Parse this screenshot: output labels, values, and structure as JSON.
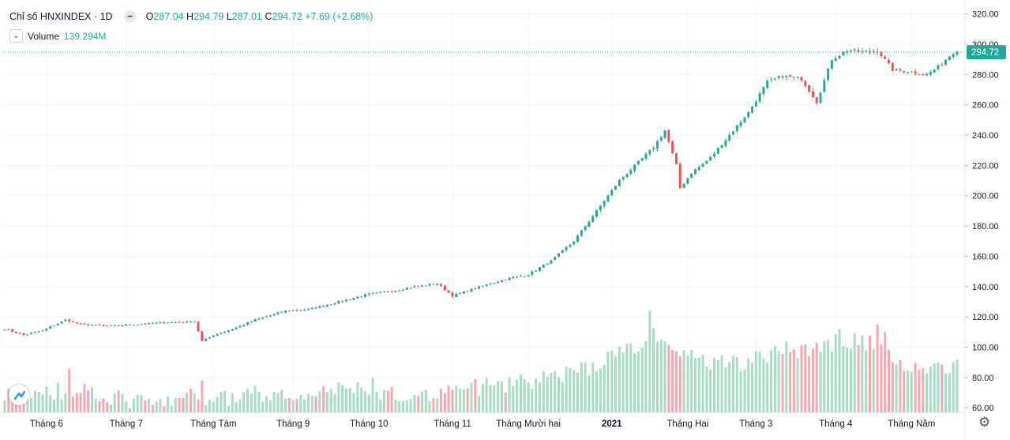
{
  "legend": {
    "symbol_label": "Chỉ số HNXINDEX · 1D",
    "open_label": "O",
    "open_value": "287.04",
    "high_label": "H",
    "high_value": "294.79",
    "low_label": "L",
    "low_value": "287.01",
    "close_label": "C",
    "close_value": "294.72",
    "change": "+7.69 (+2.68%)"
  },
  "volume_legend": {
    "label": "Volume",
    "value": "139.294M"
  },
  "colors": {
    "up": "#26a69a",
    "down": "#ef5350",
    "up_volume": "#a6dcc3",
    "down_volume": "#f6a7b1",
    "price_line": "#26a69a",
    "grid": "#f0f3fa"
  },
  "chart_data": {
    "type": "candlestick",
    "title": "Chỉ số HNXINDEX · 1D",
    "last_price": 294.72,
    "last_price_label": "294.72",
    "ylim": [
      57,
      325
    ],
    "y_ticks": [
      60,
      80,
      100,
      120,
      140,
      160,
      180,
      200,
      220,
      240,
      260,
      280,
      300,
      320
    ],
    "y_tick_labels": [
      "60.00",
      "80.00",
      "100.00",
      "120.00",
      "140.00",
      "160.00",
      "180.00",
      "200.00",
      "220.00",
      "240.00",
      "260.00",
      "280.00",
      "300.00",
      "320.00"
    ],
    "x_labels": [
      "Tháng 6",
      "Tháng 7",
      "Tháng Tám",
      "Tháng 9",
      "Tháng 10",
      "Tháng 11",
      "Tháng Mười hai",
      "2021",
      "Tháng Hai",
      "Tháng 3",
      "Tháng 4",
      "Tháng Năm"
    ],
    "x_label_bar_index": [
      11,
      32,
      55,
      76,
      96,
      118,
      138,
      160,
      180,
      198,
      219,
      239
    ],
    "bar_count": 252,
    "price_keyframes": [
      [
        0,
        112
      ],
      [
        5,
        108
      ],
      [
        10,
        111
      ],
      [
        16,
        118
      ],
      [
        20,
        115
      ],
      [
        28,
        114
      ],
      [
        40,
        116
      ],
      [
        50,
        117
      ],
      [
        52,
        104
      ],
      [
        55,
        108
      ],
      [
        60,
        112
      ],
      [
        66,
        118
      ],
      [
        74,
        124
      ],
      [
        80,
        125
      ],
      [
        88,
        130
      ],
      [
        96,
        135
      ],
      [
        102,
        137
      ],
      [
        108,
        140
      ],
      [
        114,
        142
      ],
      [
        118,
        134
      ],
      [
        124,
        139
      ],
      [
        132,
        145
      ],
      [
        138,
        148
      ],
      [
        144,
        157
      ],
      [
        150,
        170
      ],
      [
        156,
        190
      ],
      [
        162,
        210
      ],
      [
        167,
        222
      ],
      [
        171,
        232
      ],
      [
        174,
        243
      ],
      [
        177,
        220
      ],
      [
        178,
        205
      ],
      [
        181,
        215
      ],
      [
        186,
        225
      ],
      [
        191,
        240
      ],
      [
        196,
        255
      ],
      [
        201,
        275
      ],
      [
        205,
        279
      ],
      [
        210,
        277
      ],
      [
        214,
        262
      ],
      [
        218,
        290
      ],
      [
        222,
        296
      ],
      [
        226,
        295
      ],
      [
        230,
        296
      ],
      [
        234,
        283
      ],
      [
        238,
        282
      ],
      [
        243,
        280
      ],
      [
        246,
        285
      ],
      [
        250,
        294.72
      ]
    ],
    "volume_keyframes": [
      [
        0,
        68
      ],
      [
        10,
        70
      ],
      [
        20,
        73
      ],
      [
        30,
        66
      ],
      [
        40,
        62
      ],
      [
        50,
        68
      ],
      [
        56,
        66
      ],
      [
        70,
        70
      ],
      [
        90,
        73
      ],
      [
        110,
        69
      ],
      [
        130,
        75
      ],
      [
        145,
        80
      ],
      [
        155,
        88
      ],
      [
        165,
        98
      ],
      [
        170,
        110
      ],
      [
        176,
        100
      ],
      [
        185,
        88
      ],
      [
        195,
        90
      ],
      [
        205,
        98
      ],
      [
        215,
        100
      ],
      [
        220,
        105
      ],
      [
        230,
        102
      ],
      [
        236,
        90
      ],
      [
        244,
        84
      ],
      [
        251,
        86
      ]
    ],
    "volume_spikes": [
      [
        17,
        86
      ],
      [
        52,
        78
      ],
      [
        97,
        80
      ],
      [
        124,
        79
      ],
      [
        170,
        124
      ],
      [
        174,
        104
      ],
      [
        220,
        112
      ],
      [
        230,
        115
      ],
      [
        232,
        110
      ],
      [
        251,
        92
      ]
    ]
  },
  "icons": {
    "logo": "tradingview-cloud-logo",
    "settings": "gear-icon",
    "collapse": "chevron-down-icon"
  }
}
